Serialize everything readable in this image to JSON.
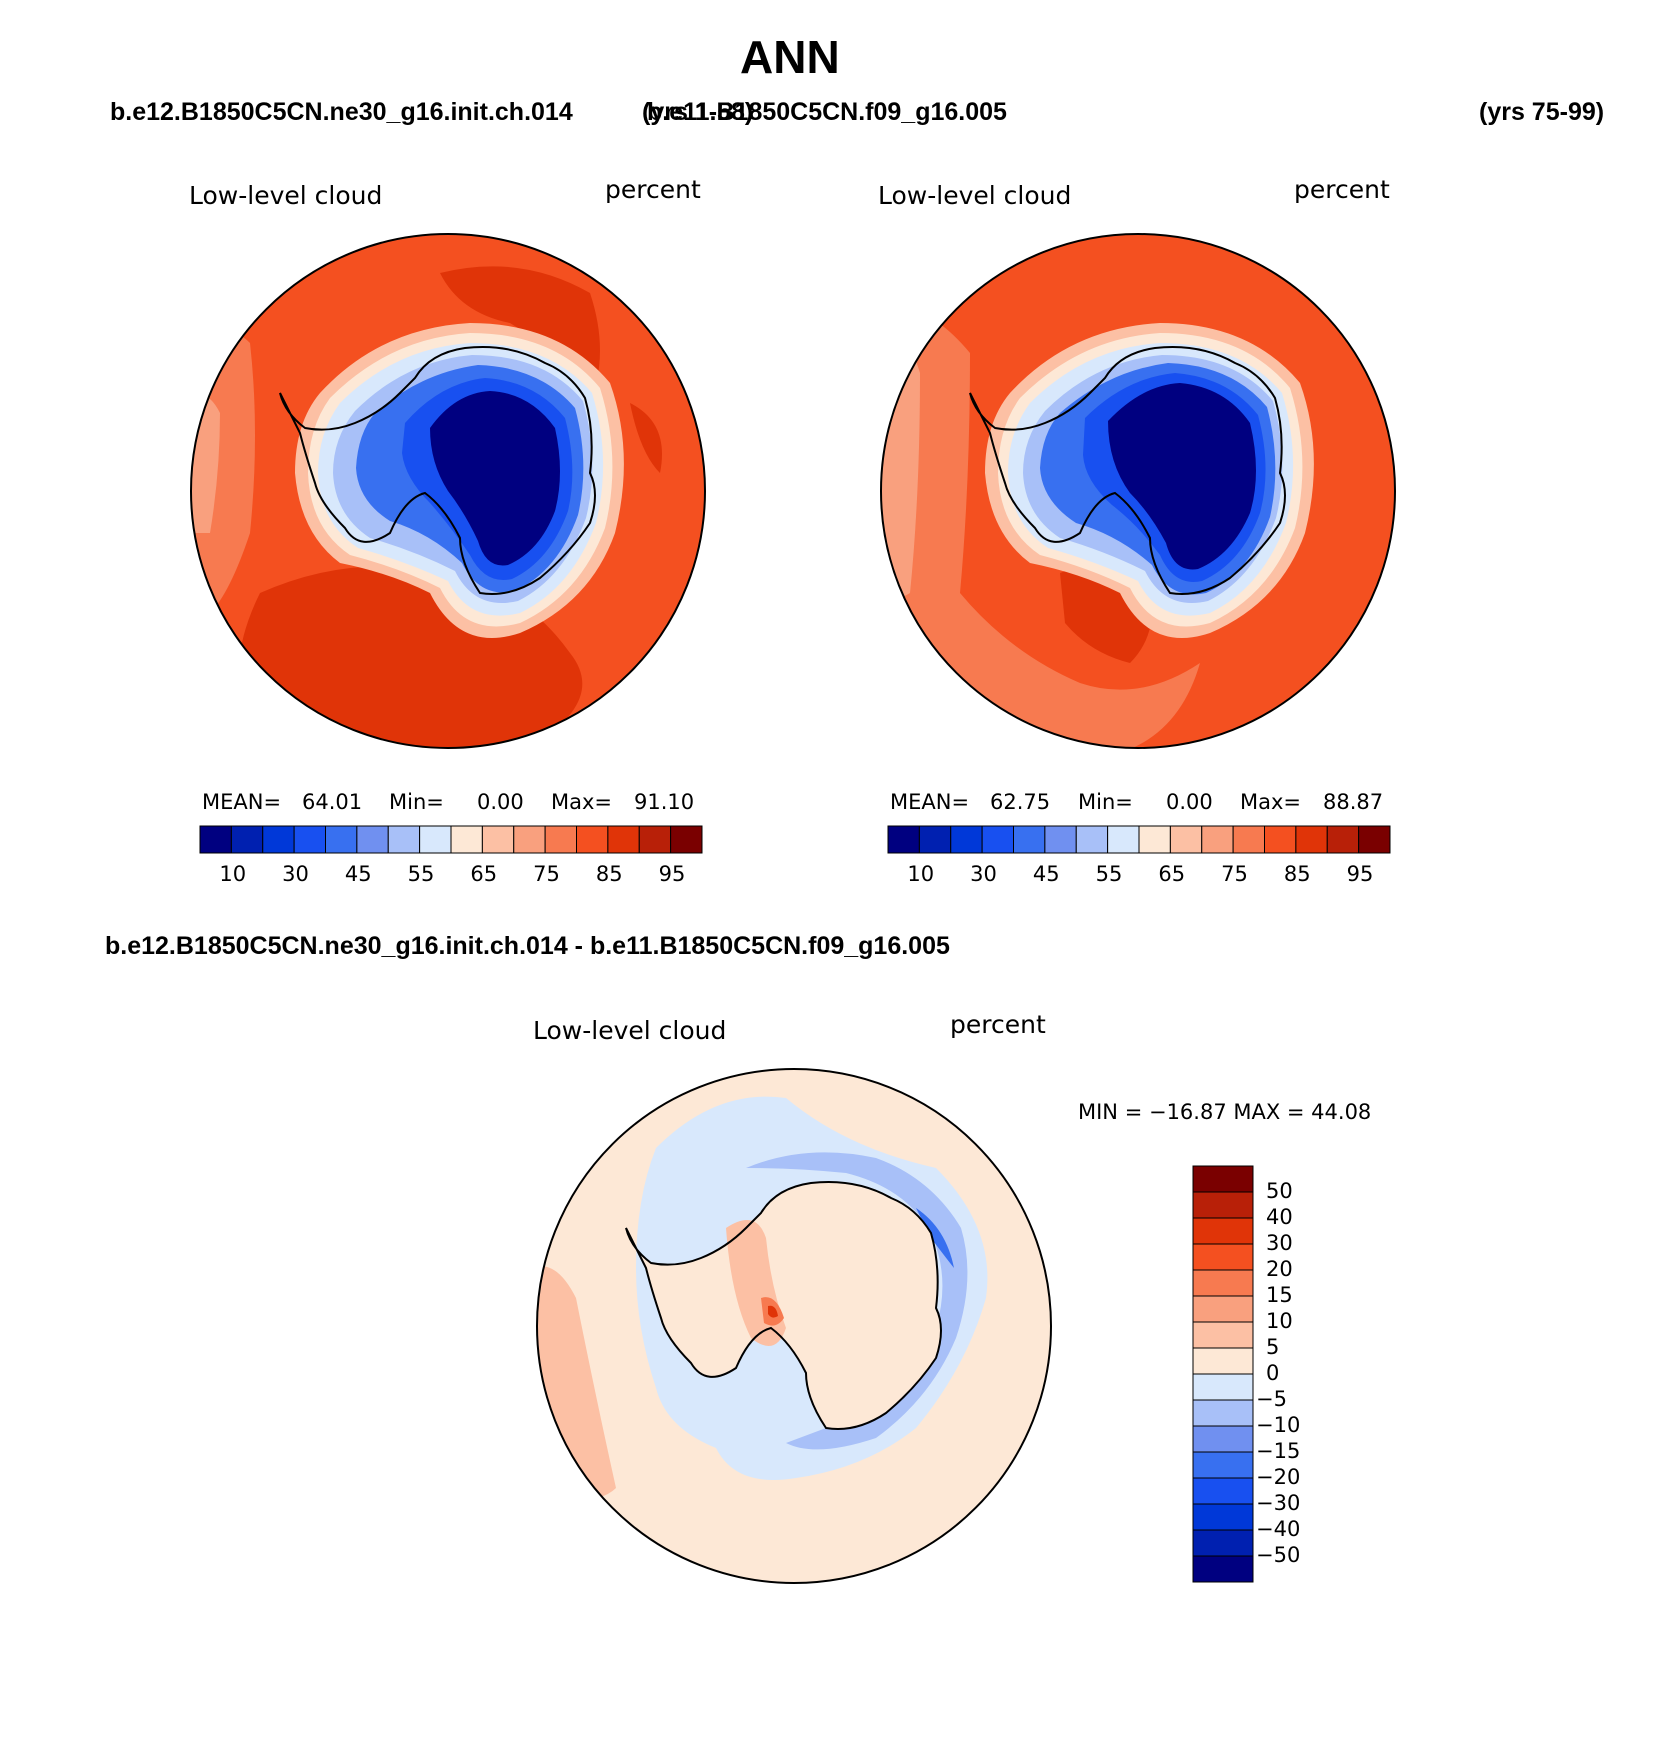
{
  "title": "ANN",
  "top_left": {
    "case": "b.e12.B1850C5CN.ne30_g16.init.ch.014",
    "years": "(yrs 1-58)"
  },
  "top_right": {
    "case": "b.e11.B1850C5CN.f09_g16.005",
    "years": "(yrs 75-99)"
  },
  "diff_case": "b.e12.B1850C5CN.ne30_g16.init.ch.014 - b.e11.B1850C5CN.f09_g16.005",
  "panels": {
    "left": {
      "variable": "Low-level cloud",
      "units": "percent",
      "mean_label": "MEAN=",
      "mean": "64.01",
      "min_label": "Min=",
      "min": "0.00",
      "max_label": "Max=",
      "max": "91.10"
    },
    "right": {
      "variable": "Low-level cloud",
      "units": "percent",
      "mean_label": "MEAN=",
      "mean": "62.75",
      "min_label": "Min=",
      "min": "0.00",
      "max_label": "Max=",
      "max": "88.87"
    },
    "diff": {
      "variable": "Low-level cloud",
      "units": "percent",
      "minmax": "MIN = −16.87 MAX =   44.08"
    }
  },
  "colorbars": {
    "abs": {
      "colors": [
        "#000080",
        "#0020b0",
        "#0038d8",
        "#1850f0",
        "#3870f0",
        "#7090f0",
        "#a8c0f8",
        "#d8e8fc",
        "#fde8d6",
        "#fcc0a4",
        "#f9a07e",
        "#f77a50",
        "#f45020",
        "#e03408",
        "#b82008",
        "#7a0000"
      ],
      "labels": [
        "10",
        "30",
        "45",
        "55",
        "65",
        "75",
        "85",
        "95"
      ]
    },
    "diff": {
      "colors": [
        "#000080",
        "#0020b0",
        "#0038d8",
        "#1850f0",
        "#3870f0",
        "#7090f0",
        "#a8c0f8",
        "#d8e8fc",
        "#fde8d6",
        "#fcc0a4",
        "#f9a07e",
        "#f77a50",
        "#f45020",
        "#e03408",
        "#b82008",
        "#7a0000"
      ],
      "labels": [
        "50",
        "40",
        "30",
        "20",
        "15",
        "10",
        "5",
        "0",
        "−5",
        "−10",
        "−15",
        "−20",
        "−30",
        "−40",
        "−50"
      ]
    }
  },
  "map_colors": {
    "ocean_high": "#f45020",
    "ocean_higher": "#e03408",
    "ocean_mid": "#f77a50",
    "ocean_low": "#f9a07e",
    "ring_pale": "#fcc0a4",
    "ring_cream": "#fde8d6",
    "ring_lightblue": "#d8e8fc",
    "ring_blue": "#a8c0f8",
    "ice_edge": "#3870f0",
    "ice_mid": "#1850f0",
    "ice_core": "#000080",
    "diff_base": "#fde8d6",
    "diff_blue_light": "#d8e8fc",
    "diff_blue": "#a8c0f8",
    "diff_red": "#f77a50",
    "diff_red_dark": "#e03408"
  }
}
